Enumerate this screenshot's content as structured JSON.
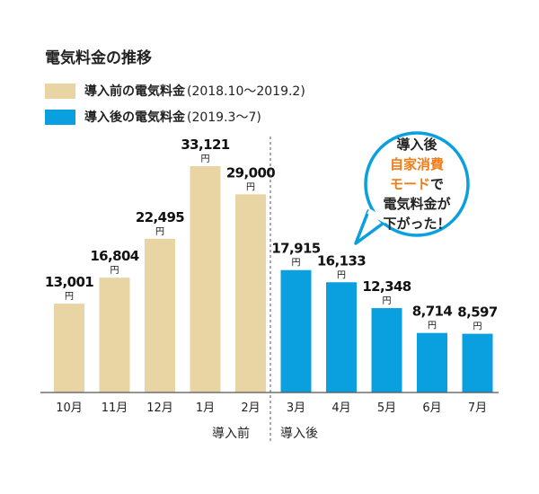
{
  "title": "電気料金の推移",
  "legend": [
    {
      "label": "導入前の電気料金",
      "note": "(2018.10～2019.2)",
      "color": "#e8d5a3"
    },
    {
      "label": "導入後の電気料金",
      "note": "(2019.3～7)",
      "color": "#0aa0e0"
    }
  ],
  "callout": {
    "line1": "導入後",
    "line2": "自家消費",
    "line3a": "モード",
    "line3b": "で",
    "line4": "電気料金が",
    "line5": "下がった！"
  },
  "phases": {
    "before": "導入前",
    "after": "導入後"
  },
  "chart_data": {
    "type": "bar",
    "categories": [
      "10月",
      "11月",
      "12月",
      "1月",
      "2月",
      "3月",
      "4月",
      "5月",
      "6月",
      "7月"
    ],
    "values": [
      13001,
      16804,
      22495,
      33121,
      29000,
      17915,
      16133,
      12348,
      8714,
      8597
    ],
    "value_labels": [
      "13,001",
      "16,804",
      "22,495",
      "33,121",
      "29,000",
      "17,915",
      "16,133",
      "12,348",
      "8,714",
      "8,597"
    ],
    "unit": "円",
    "group": [
      "before",
      "before",
      "before",
      "before",
      "before",
      "after",
      "after",
      "after",
      "after",
      "after"
    ],
    "colors": {
      "before": "#e8d5a3",
      "after": "#0aa0e0"
    },
    "ylim": [
      0,
      35000
    ],
    "grid": false
  }
}
